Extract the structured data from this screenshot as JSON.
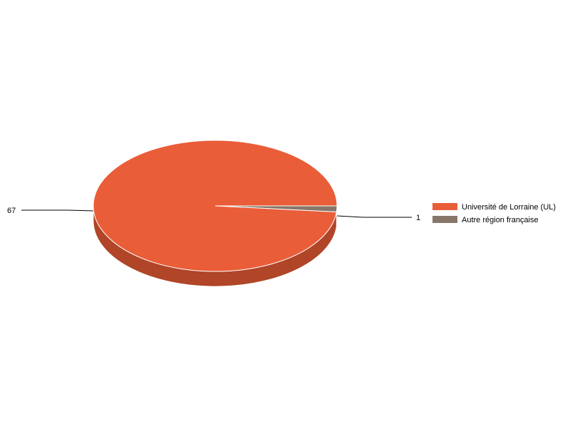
{
  "chart_data": {
    "type": "pie",
    "style": "3d",
    "title": "",
    "categories": [
      "Université de Lorraine (UL)",
      "Autre région française"
    ],
    "values": [
      67,
      1
    ],
    "colors": [
      "#e95d38",
      "#87766a"
    ],
    "side_colors": [
      "#b04528",
      "#665950"
    ],
    "data_labels": [
      "67",
      "1"
    ],
    "legend_placement": "right"
  }
}
